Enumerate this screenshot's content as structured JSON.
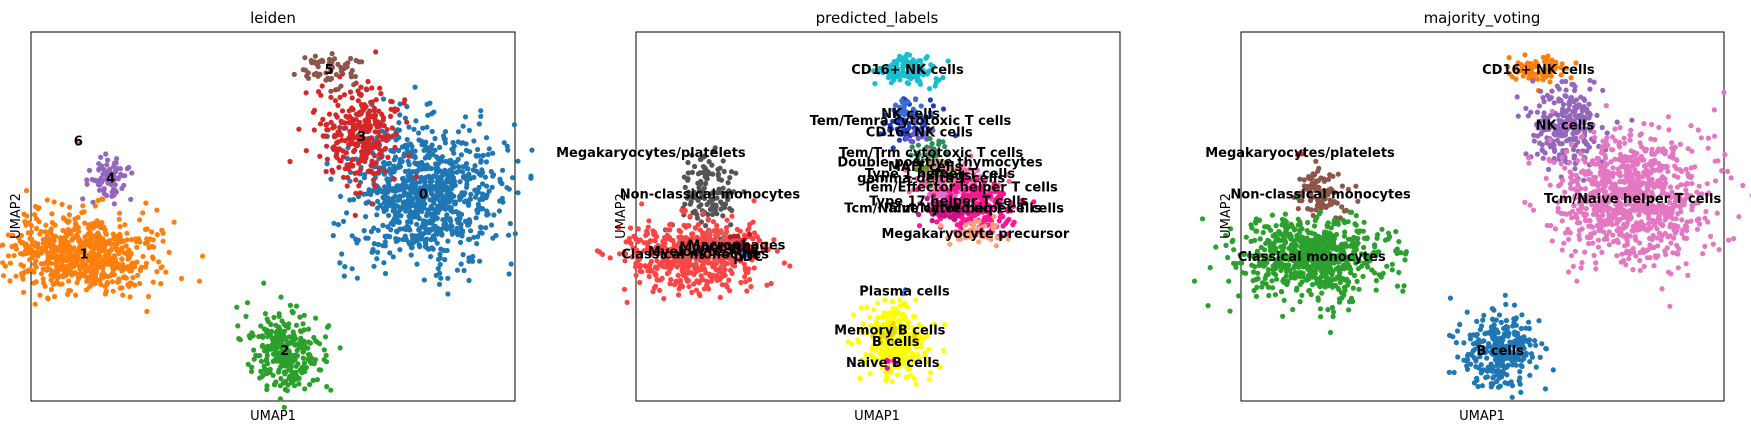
{
  "chart_data": [
    {
      "type": "scatter",
      "title": "leiden",
      "xlabel": "UMAP1",
      "ylabel": "UMAP2",
      "grid": false,
      "legend": "on data",
      "clusters": [
        {
          "label": "0",
          "color": "#1f77b4",
          "x": 8.6,
          "y": 6.2,
          "sx": 1.25,
          "sy": 1.5,
          "n": 900
        },
        {
          "label": "1",
          "color": "#ff7f0e",
          "x": -2.9,
          "y": 3.6,
          "sx": 1.25,
          "sy": 0.85,
          "n": 700
        },
        {
          "label": "2",
          "color": "#2ca02c",
          "x": 3.9,
          "y": -0.6,
          "sx": 0.6,
          "sy": 0.85,
          "n": 300
        },
        {
          "label": "3",
          "color": "#d62728",
          "x": 6.5,
          "y": 8.7,
          "sx": 0.7,
          "sy": 1.1,
          "n": 300
        },
        {
          "label": "4",
          "color": "#9467bd",
          "x": -2.0,
          "y": 6.9,
          "sx": 0.35,
          "sy": 0.45,
          "n": 80
        },
        {
          "label": "5",
          "color": "#8c564b",
          "x": 5.4,
          "y": 11.6,
          "sx": 0.5,
          "sy": 0.3,
          "n": 60
        },
        {
          "label": "6",
          "color": "#e377c2",
          "x": -3.1,
          "y": 8.5,
          "sx": 0.05,
          "sy": 0.05,
          "n": 3
        }
      ]
    },
    {
      "type": "scatter",
      "title": "predicted_labels",
      "xlabel": "UMAP1",
      "ylabel": "UMAP2",
      "grid": false,
      "legend": "on data",
      "clusters": [
        {
          "label": "CD16+ NK cells",
          "color": "#17becf",
          "x": 4.5,
          "y": 11.6,
          "sx": 0.5,
          "sy": 0.35,
          "n": 120
        },
        {
          "label": "Tem/Temra cytotoxic T cells",
          "color": "#1f3fbf",
          "x": 4.6,
          "y": 9.4,
          "sx": 0.45,
          "sy": 0.5,
          "n": 60
        },
        {
          "label": "NK cells",
          "color": "#3a6bd6",
          "x": 4.6,
          "y": 9.7,
          "sx": 0.3,
          "sy": 0.3,
          "n": 30
        },
        {
          "label": "CD16- NK cells",
          "color": "#6a5acd",
          "x": 4.9,
          "y": 8.9,
          "sx": 0.25,
          "sy": 0.25,
          "n": 20
        },
        {
          "label": "Tem/Trm cytotoxic T cells",
          "color": "#2e8b57",
          "x": 5.3,
          "y": 8.0,
          "sx": 0.35,
          "sy": 0.3,
          "n": 30
        },
        {
          "label": "Double-positive thymocytes",
          "color": "#8fbc8f",
          "x": 5.6,
          "y": 7.6,
          "sx": 0.2,
          "sy": 0.2,
          "n": 10
        },
        {
          "label": "MAIT cells",
          "color": "#6b8e23",
          "x": 5.1,
          "y": 7.4,
          "sx": 0.2,
          "sy": 0.2,
          "n": 15
        },
        {
          "label": "Type 1 helper T cells",
          "color": "#bdb76b",
          "x": 5.6,
          "y": 7.1,
          "sx": 0.3,
          "sy": 0.25,
          "n": 25
        },
        {
          "label": "Tregs",
          "color": "#9acd32",
          "x": 6.0,
          "y": 7.0,
          "sx": 0.25,
          "sy": 0.2,
          "n": 15
        },
        {
          "label": "gamma-delta T cells",
          "color": "#556b2f",
          "x": 5.3,
          "y": 6.9,
          "sx": 0.2,
          "sy": 0.2,
          "n": 10
        },
        {
          "label": "Tem/Effector helper T cells",
          "color": "#ff69b4",
          "x": 6.3,
          "y": 6.5,
          "sx": 0.7,
          "sy": 0.5,
          "n": 150
        },
        {
          "label": "Type 17 helper T cells",
          "color": "#da70d6",
          "x": 5.9,
          "y": 5.9,
          "sx": 0.35,
          "sy": 0.3,
          "n": 30
        },
        {
          "label": "Tcm/Naive helper T cells",
          "color": "#ff1493",
          "x": 6.8,
          "y": 5.6,
          "sx": 0.7,
          "sy": 0.55,
          "n": 220
        },
        {
          "label": "Tcm/Naive cytotoxic T cells",
          "color": "#c71585",
          "x": 5.7,
          "y": 5.6,
          "sx": 0.4,
          "sy": 0.3,
          "n": 40
        },
        {
          "label": "Megakaryocyte precursor",
          "color": "#ffa07a",
          "x": 6.8,
          "y": 4.5,
          "sx": 0.45,
          "sy": 0.3,
          "n": 40
        },
        {
          "label": "Megakaryocytes/platelets",
          "color": "#9e9e9e",
          "x": -4.2,
          "y": 8.0,
          "sx": 0.05,
          "sy": 0.05,
          "n": 2
        },
        {
          "label": "Non-classical monocytes",
          "color": "#555555",
          "x": -2.2,
          "y": 6.2,
          "sx": 0.5,
          "sy": 0.9,
          "n": 130
        },
        {
          "label": "Classical monocytes",
          "color": "#ff4444",
          "x": -2.7,
          "y": 3.6,
          "sx": 1.2,
          "sy": 0.75,
          "n": 550
        },
        {
          "label": "Monocytes",
          "color": "#e05a5a",
          "x": -1.9,
          "y": 3.9,
          "sx": 0.4,
          "sy": 0.3,
          "n": 40
        },
        {
          "label": "Macrophages",
          "color": "#b22222",
          "x": -1.3,
          "y": 4.0,
          "sx": 0.3,
          "sy": 0.3,
          "n": 20
        },
        {
          "label": "Myelocytes",
          "color": "#cd5c5c",
          "x": -2.9,
          "y": 3.7,
          "sx": 0.3,
          "sy": 0.3,
          "n": 15
        },
        {
          "label": "DC2",
          "color": "#8b0000",
          "x": -1.0,
          "y": 3.8,
          "sx": 0.2,
          "sy": 0.2,
          "n": 8
        },
        {
          "label": "pDC",
          "color": "#4169e1",
          "x": -0.9,
          "y": 3.5,
          "sx": 0.1,
          "sy": 0.1,
          "n": 4
        },
        {
          "label": "Plasma cells",
          "color": "#1e90ff",
          "x": 4.4,
          "y": 2.0,
          "sx": 0.05,
          "sy": 0.05,
          "n": 2
        },
        {
          "label": "B cells",
          "color": "#ffff00",
          "x": 4.1,
          "y": -0.2,
          "sx": 0.55,
          "sy": 0.8,
          "n": 280
        },
        {
          "label": "Memory B cells",
          "color": "#e6d800",
          "x": 3.9,
          "y": 0.3,
          "sx": 0.3,
          "sy": 0.3,
          "n": 20
        },
        {
          "label": "Naive B cells",
          "color": "#ff00aa",
          "x": 4.0,
          "y": -1.1,
          "sx": 0.15,
          "sy": 0.1,
          "n": 5
        }
      ]
    },
    {
      "type": "scatter",
      "title": "majority_voting",
      "xlabel": "UMAP1",
      "ylabel": "UMAP2",
      "grid": false,
      "legend": "on data",
      "clusters": [
        {
          "label": "CD16+ NK cells",
          "color": "#ff7f0e",
          "x": 5.4,
          "y": 11.6,
          "sx": 0.55,
          "sy": 0.3,
          "n": 80
        },
        {
          "label": "NK cells",
          "color": "#9467bd",
          "x": 6.3,
          "y": 9.2,
          "sx": 0.6,
          "sy": 0.9,
          "n": 260
        },
        {
          "label": "Tcm/Naive helper T cells",
          "color": "#e377c2",
          "x": 8.6,
          "y": 6.0,
          "sx": 1.2,
          "sy": 1.4,
          "n": 900
        },
        {
          "label": "Megakaryocytes/platelets",
          "color": "#d62728",
          "x": -2.7,
          "y": 8.0,
          "sx": 0.05,
          "sy": 0.05,
          "n": 3
        },
        {
          "label": "Non-classical monocytes",
          "color": "#8c564b",
          "x": -2.0,
          "y": 6.2,
          "sx": 0.45,
          "sy": 0.6,
          "n": 100
        },
        {
          "label": "Classical monocytes",
          "color": "#2ca02c",
          "x": -2.3,
          "y": 3.5,
          "sx": 1.2,
          "sy": 0.9,
          "n": 700
        },
        {
          "label": "B cells",
          "color": "#1f77b4",
          "x": 4.1,
          "y": -0.6,
          "sx": 0.6,
          "sy": 0.85,
          "n": 300
        }
      ]
    }
  ]
}
